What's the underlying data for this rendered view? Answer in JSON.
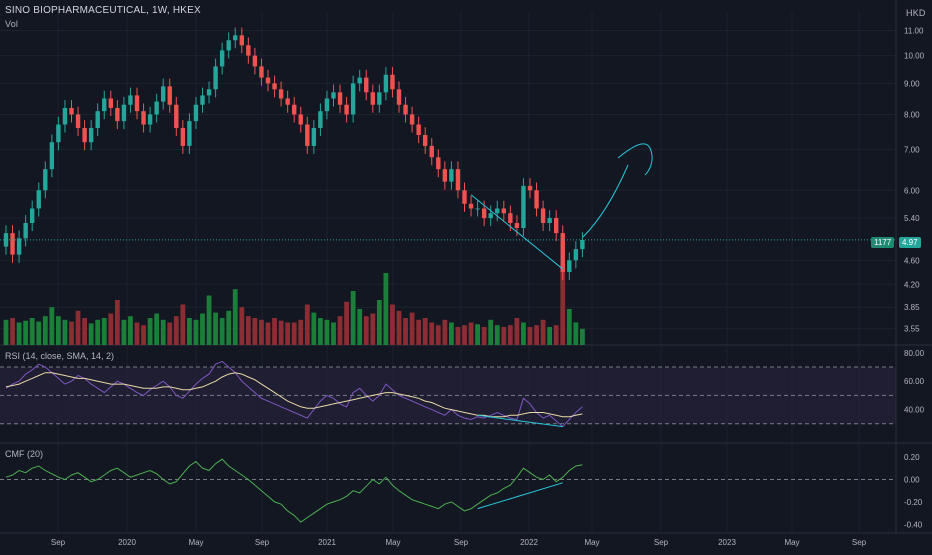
{
  "header": {
    "title": "SINO BIOPHARMACEUTICAL, 1W, HKEX",
    "vol_label": "Vol",
    "currency": "HKD",
    "rsi_label": "RSI (14, close, SMA, 14, 2)",
    "cmf_label": "CMF (20)"
  },
  "price_tags": {
    "vol": "1177",
    "last": "4.97"
  },
  "colors": {
    "up": "#26a69a",
    "down": "#ef5350",
    "vol_up": "#1b7f3a",
    "vol_down": "#8b2d33",
    "rsi": "#7e57c2",
    "rsi_sma": "#e8d9a6",
    "cmf": "#4caf50",
    "bg": "#131722",
    "grid": "#1e222d",
    "drawing": "#26c6da",
    "rsi_band": "#2a2540"
  },
  "chart_data": [
    {
      "type": "candlestick",
      "title": "SINO BIOPHARMACEUTICAL, 1W, HKEX",
      "x_ticks": [
        "Sep",
        "2020",
        "May",
        "Sep",
        "2021",
        "May",
        "Sep",
        "2022",
        "May",
        "Sep",
        "2023",
        "May",
        "Sep"
      ],
      "y_ticks": [
        3.55,
        3.85,
        4.2,
        4.6,
        5.4,
        6.0,
        7.0,
        8.0,
        9.0,
        10.0,
        11.0
      ],
      "y_scale": "log",
      "ylim": [
        3.4,
        11.8
      ],
      "last_price": 4.97,
      "series_close_approx": [
        5.1,
        4.7,
        5.0,
        5.3,
        5.6,
        6.0,
        6.5,
        7.2,
        7.7,
        8.2,
        8.0,
        7.6,
        7.2,
        7.6,
        8.1,
        8.5,
        8.2,
        7.8,
        8.3,
        8.6,
        8.1,
        7.7,
        8.0,
        8.4,
        8.9,
        8.3,
        7.6,
        7.1,
        7.8,
        8.3,
        8.6,
        8.8,
        9.6,
        10.2,
        10.6,
        10.8,
        10.4,
        10.0,
        9.6,
        9.2,
        9.0,
        8.8,
        8.5,
        8.3,
        8.0,
        7.7,
        7.1,
        7.6,
        8.1,
        8.5,
        8.7,
        8.3,
        8.0,
        9.0,
        9.2,
        8.7,
        8.3,
        8.7,
        9.3,
        8.8,
        8.3,
        8.0,
        7.7,
        7.4,
        7.1,
        6.8,
        6.5,
        6.2,
        6.5,
        6.0,
        5.7,
        5.6,
        5.6,
        5.4,
        5.5,
        5.6,
        5.5,
        5.3,
        5.2,
        6.1,
        6.0,
        5.6,
        5.3,
        5.4,
        5.1,
        4.4,
        4.6,
        4.8,
        4.97
      ],
      "volume_approx": [
        0.28,
        0.3,
        0.25,
        0.27,
        0.3,
        0.26,
        0.32,
        0.42,
        0.32,
        0.28,
        0.26,
        0.38,
        0.3,
        0.24,
        0.28,
        0.3,
        0.35,
        0.5,
        0.28,
        0.32,
        0.25,
        0.22,
        0.3,
        0.35,
        0.28,
        0.25,
        0.32,
        0.45,
        0.3,
        0.28,
        0.35,
        0.55,
        0.36,
        0.3,
        0.38,
        0.62,
        0.42,
        0.32,
        0.3,
        0.28,
        0.25,
        0.3,
        0.27,
        0.25,
        0.25,
        0.28,
        0.45,
        0.36,
        0.3,
        0.28,
        0.25,
        0.32,
        0.48,
        0.6,
        0.4,
        0.32,
        0.35,
        0.5,
        0.8,
        0.45,
        0.38,
        0.3,
        0.36,
        0.28,
        0.3,
        0.25,
        0.22,
        0.28,
        0.25,
        0.2,
        0.22,
        0.25,
        0.23,
        0.2,
        0.28,
        0.22,
        0.2,
        0.22,
        0.3,
        0.25,
        0.2,
        0.22,
        0.28,
        0.2,
        0.22,
        0.9,
        0.4,
        0.25,
        0.18
      ],
      "annotations": [
        "trendline-support",
        "projected-curve"
      ]
    },
    {
      "type": "line",
      "title": "RSI (14, close, SMA, 14, 2)",
      "y_ticks": [
        40.0,
        60.0,
        80.0
      ],
      "ylim": [
        20,
        82
      ],
      "bands": [
        70,
        50,
        30
      ],
      "rsi_approx": [
        55,
        58,
        60,
        65,
        68,
        72,
        70,
        66,
        62,
        58,
        60,
        64,
        62,
        58,
        55,
        52,
        56,
        60,
        58,
        55,
        52,
        50,
        54,
        57,
        60,
        56,
        50,
        48,
        53,
        58,
        62,
        65,
        72,
        74,
        70,
        66,
        60,
        56,
        52,
        48,
        46,
        44,
        42,
        40,
        38,
        36,
        34,
        40,
        46,
        50,
        48,
        44,
        42,
        52,
        55,
        50,
        46,
        50,
        58,
        54,
        50,
        48,
        46,
        44,
        42,
        40,
        38,
        36,
        40,
        36,
        34,
        33,
        35,
        34,
        36,
        38,
        36,
        34,
        33,
        48,
        44,
        38,
        34,
        36,
        32,
        28,
        33,
        38,
        42
      ],
      "sma_approx": [
        56,
        57,
        58,
        60,
        62,
        64,
        66,
        66,
        65,
        64,
        63,
        62,
        62,
        61,
        60,
        59,
        58,
        58,
        58,
        57,
        56,
        55,
        55,
        55,
        56,
        56,
        55,
        54,
        54,
        55,
        56,
        58,
        60,
        63,
        65,
        66,
        65,
        63,
        61,
        58,
        55,
        52,
        49,
        46,
        44,
        42,
        41,
        41,
        42,
        43,
        44,
        45,
        46,
        47,
        48,
        49,
        50,
        51,
        52,
        52,
        51,
        50,
        49,
        48,
        46,
        45,
        43,
        41,
        40,
        39,
        38,
        37,
        36,
        36,
        35,
        35,
        35,
        36,
        36,
        37,
        38,
        38,
        38,
        37,
        36,
        35,
        35,
        36,
        37
      ]
    },
    {
      "type": "line",
      "title": "CMF (20)",
      "y_ticks": [
        -0.4,
        -0.2,
        0.0,
        0.2
      ],
      "ylim": [
        -0.45,
        0.28
      ],
      "cmf_approx": [
        0.02,
        0.04,
        0.08,
        0.06,
        0.1,
        0.12,
        0.08,
        0.05,
        0.02,
        0.0,
        0.04,
        0.06,
        0.02,
        -0.02,
        0.0,
        0.04,
        0.08,
        0.1,
        0.06,
        0.02,
        0.04,
        0.06,
        0.08,
        0.05,
        0.0,
        -0.04,
        -0.02,
        0.05,
        0.12,
        0.16,
        0.1,
        0.08,
        0.14,
        0.18,
        0.12,
        0.08,
        0.04,
        0.0,
        -0.05,
        -0.1,
        -0.15,
        -0.2,
        -0.22,
        -0.28,
        -0.32,
        -0.38,
        -0.34,
        -0.3,
        -0.26,
        -0.22,
        -0.2,
        -0.18,
        -0.15,
        -0.1,
        -0.12,
        -0.06,
        0.0,
        -0.04,
        0.02,
        -0.05,
        -0.1,
        -0.14,
        -0.18,
        -0.2,
        -0.22,
        -0.24,
        -0.26,
        -0.22,
        -0.2,
        -0.24,
        -0.28,
        -0.26,
        -0.22,
        -0.18,
        -0.14,
        -0.12,
        -0.08,
        -0.05,
        0.02,
        0.1,
        0.06,
        0.02,
        0.0,
        0.04,
        -0.02,
        0.02,
        0.08,
        0.12,
        0.13
      ]
    }
  ]
}
